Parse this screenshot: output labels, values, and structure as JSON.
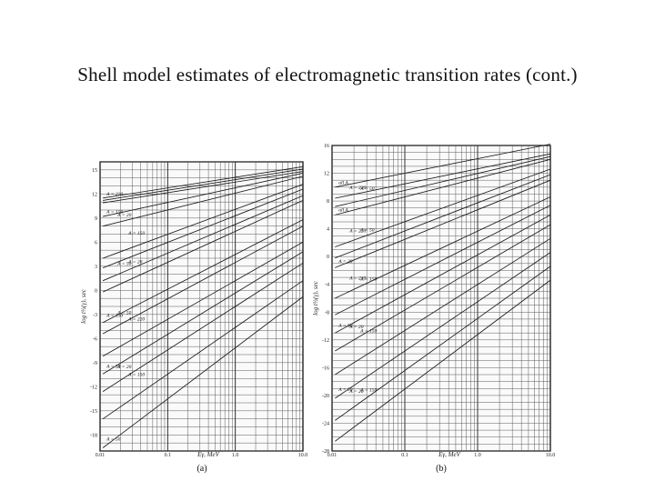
{
  "slide": {
    "title": "Shell model estimates of electromagnetic transition rates (cont.)"
  },
  "chart_data": [
    {
      "type": "line",
      "panel_label": "(a)",
      "xlabel": "Eγ, MeV",
      "ylabel": "log t½(γ), sec",
      "x_scale": "log",
      "xlim": [
        0.01,
        10
      ],
      "x_ticks": [
        {
          "value": 0.01,
          "label": "0.01"
        },
        {
          "value": 0.1,
          "label": "0.1"
        },
        {
          "value": 1,
          "label": "1.0"
        },
        {
          "value": 10,
          "label": "10.0"
        }
      ],
      "ylim": [
        -20,
        16
      ],
      "y_tick_step": 1,
      "y_ticks": [
        {
          "value": 15,
          "label": "15"
        },
        {
          "value": 12,
          "label": "12"
        },
        {
          "value": 9,
          "label": "9"
        },
        {
          "value": 6,
          "label": "6"
        },
        {
          "value": 3,
          "label": "3"
        },
        {
          "value": 0,
          "label": "0"
        },
        {
          "value": -3,
          "label": "-3"
        },
        {
          "value": -6,
          "label": "-6"
        },
        {
          "value": -9,
          "label": "-9"
        },
        {
          "value": -12,
          "label": "-12"
        },
        {
          "value": -15,
          "label": "-15"
        },
        {
          "value": -18,
          "label": "-18"
        }
      ],
      "series": [
        {
          "label": "A = 220",
          "x": [
            0.011,
            10
          ],
          "y": [
            11.5,
            15.4
          ]
        },
        {
          "label": "",
          "x": [
            0.011,
            10
          ],
          "y": [
            11.2,
            15.1
          ]
        },
        {
          "label": "",
          "x": [
            0.011,
            10
          ],
          "y": [
            10.9,
            14.8
          ]
        },
        {
          "label": "A = 150",
          "x": [
            0.011,
            10
          ],
          "y": [
            9.2,
            14.6
          ]
        },
        {
          "label": "A = 20",
          "x": [
            0.011,
            10
          ],
          "y": [
            8.0,
            14.2
          ]
        },
        {
          "label": "A = 150",
          "x": [
            0.011,
            10
          ],
          "y": [
            4.0,
            13.2
          ]
        },
        {
          "label": "",
          "x": [
            0.011,
            10
          ],
          "y": [
            2.8,
            12.6
          ]
        },
        {
          "label": "A = 50",
          "x": [
            0.011,
            10
          ],
          "y": [
            1.2,
            11.8
          ]
        },
        {
          "label": "A = 20",
          "x": [
            0.011,
            10
          ],
          "y": [
            -0.2,
            11.2
          ]
        },
        {
          "label": "A = 150",
          "x": [
            0.011,
            10
          ],
          "y": [
            -4.0,
            8.8
          ]
        },
        {
          "label": "A = 50",
          "x": [
            0.011,
            10
          ],
          "y": [
            -5.4,
            8.0
          ]
        },
        {
          "label": "A = 220",
          "x": [
            0.011,
            10
          ],
          "y": [
            -8.2,
            6.0
          ]
        },
        {
          "label": "A = 50",
          "x": [
            0.011,
            10
          ],
          "y": [
            -10.4,
            4.8
          ]
        },
        {
          "label": "A = 20",
          "x": [
            0.011,
            10
          ],
          "y": [
            -12.6,
            3.4
          ]
        },
        {
          "label": "A = 150",
          "x": [
            0.011,
            10
          ],
          "y": [
            -16.0,
            1.2
          ]
        },
        {
          "label": "A = 50",
          "x": [
            0.011,
            10
          ],
          "y": [
            -19.6,
            -0.8
          ]
        }
      ]
    },
    {
      "type": "line",
      "panel_label": "(b)",
      "xlabel": "Eγ, MeV",
      "ylabel": "log t½(γ), sec",
      "x_scale": "log",
      "xlim": [
        0.01,
        10
      ],
      "x_ticks": [
        {
          "value": 0.01,
          "label": "0.01"
        },
        {
          "value": 0.1,
          "label": "0.1"
        },
        {
          "value": 1,
          "label": "1.0"
        },
        {
          "value": 10,
          "label": "10.0"
        }
      ],
      "ylim": [
        -28,
        16
      ],
      "y_tick_step": 1,
      "y_ticks": [
        {
          "value": 16,
          "label": "16"
        },
        {
          "value": 12,
          "label": "12"
        },
        {
          "value": 8,
          "label": "8"
        },
        {
          "value": 4,
          "label": "4"
        },
        {
          "value": 0,
          "label": "0"
        },
        {
          "value": -4,
          "label": "-4"
        },
        {
          "value": -8,
          "label": "-8"
        },
        {
          "value": -12,
          "label": "-12"
        },
        {
          "value": -16,
          "label": "-16"
        },
        {
          "value": -20,
          "label": "-20"
        },
        {
          "value": -24,
          "label": "-24"
        },
        {
          "value": -28,
          "label": "-28"
        }
      ],
      "series": [
        {
          "label": "all A",
          "x": [
            0.011,
            10
          ],
          "y": [
            10.0,
            16.2
          ]
        },
        {
          "label": "A = 220",
          "x": [
            0.011,
            10
          ],
          "y": [
            8.4,
            14.8
          ]
        },
        {
          "label": "A = 50",
          "x": [
            0.011,
            10
          ],
          "y": [
            7.2,
            14.4
          ]
        },
        {
          "label": "all A",
          "x": [
            0.011,
            10
          ],
          "y": [
            6.0,
            14.0
          ]
        },
        {
          "label": "A = 220",
          "x": [
            0.011,
            10
          ],
          "y": [
            1.4,
            12.6
          ]
        },
        {
          "label": "A = 50",
          "x": [
            0.011,
            10
          ],
          "y": [
            -0.2,
            11.8
          ]
        },
        {
          "label": "A = 20",
          "x": [
            0.011,
            10
          ],
          "y": [
            -1.6,
            11.0
          ]
        },
        {
          "label": "A = 220",
          "x": [
            0.011,
            10
          ],
          "y": [
            -6.0,
            8.6
          ]
        },
        {
          "label": "A = 150",
          "x": [
            0.011,
            10
          ],
          "y": [
            -8.4,
            7.4
          ]
        },
        {
          "label": "A = 50",
          "x": [
            0.011,
            10
          ],
          "y": [
            -11.0,
            6.0
          ]
        },
        {
          "label": "A = 20",
          "x": [
            0.011,
            10
          ],
          "y": [
            -13.6,
            4.6
          ]
        },
        {
          "label": "A = 150",
          "x": [
            0.011,
            10
          ],
          "y": [
            -17.0,
            2.6
          ]
        },
        {
          "label": "A = 50",
          "x": [
            0.011,
            10
          ],
          "y": [
            -20.4,
            0.6
          ]
        },
        {
          "label": "A = 20",
          "x": [
            0.011,
            10
          ],
          "y": [
            -23.6,
            -1.4
          ]
        },
        {
          "label": "A = 150",
          "x": [
            0.011,
            10
          ],
          "y": [
            -26.6,
            -3.4
          ]
        }
      ]
    }
  ]
}
